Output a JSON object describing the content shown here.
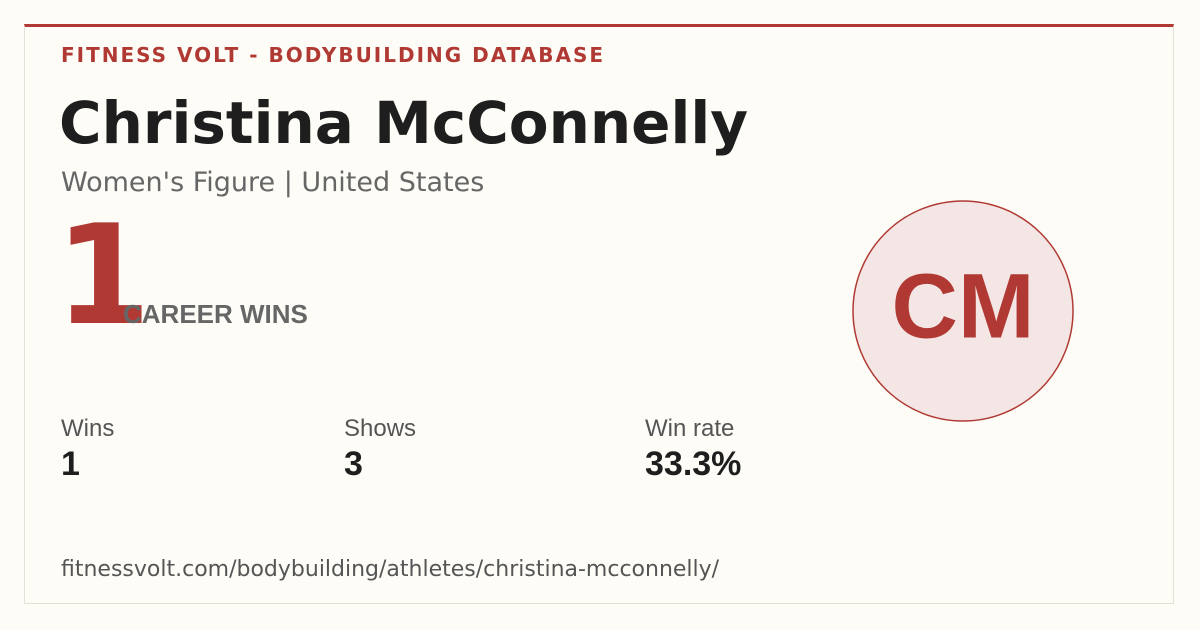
{
  "header": {
    "brand": "FITNESS VOLT - BODYBUILDING DATABASE"
  },
  "athlete": {
    "name": "Christina McConnelly",
    "subtitle": "Women's Figure | United States",
    "initials": "CM"
  },
  "headline": {
    "value": 1,
    "label": "CAREER WINS"
  },
  "stats": [
    {
      "label": "Wins",
      "value": 1
    },
    {
      "label": "Shows",
      "value": 3
    },
    {
      "label": "Win rate",
      "value": "33.3%"
    }
  ],
  "footer": {
    "url": "fitnessvolt.com/bodybuilding/athletes/christina-mcconnelly/"
  }
}
